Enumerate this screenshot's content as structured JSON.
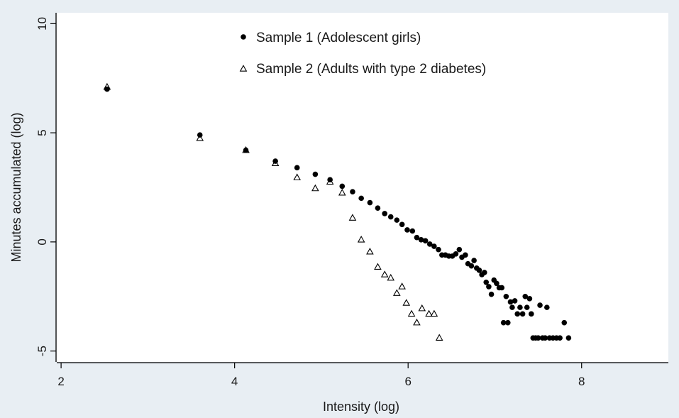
{
  "chart_data": {
    "type": "scatter",
    "title": "",
    "xlabel": "Intensity (log)",
    "ylabel": "Minutes accumulated (log)",
    "xlim": [
      1.95,
      9.0
    ],
    "ylim": [
      -5.5,
      10.5
    ],
    "xticks": [
      2,
      4,
      6,
      8
    ],
    "yticks": [
      -5,
      0,
      5,
      10
    ],
    "grid": false,
    "legend_position": "top",
    "colors": {
      "background": "#e8eef3",
      "plot_area": "#ffffff",
      "marker": "#000000"
    },
    "series": [
      {
        "name": "Sample 1 (Adolescent girls)",
        "marker": "filled-circle",
        "points": [
          [
            2.53,
            7.0
          ],
          [
            3.6,
            4.9
          ],
          [
            4.13,
            4.2
          ],
          [
            4.47,
            3.7
          ],
          [
            4.72,
            3.4
          ],
          [
            4.93,
            3.1
          ],
          [
            5.1,
            2.85
          ],
          [
            5.24,
            2.55
          ],
          [
            5.36,
            2.3
          ],
          [
            5.46,
            2.0
          ],
          [
            5.56,
            1.8
          ],
          [
            5.65,
            1.55
          ],
          [
            5.73,
            1.3
          ],
          [
            5.8,
            1.15
          ],
          [
            5.87,
            1.0
          ],
          [
            5.93,
            0.8
          ],
          [
            5.99,
            0.55
          ],
          [
            6.05,
            0.5
          ],
          [
            6.1,
            0.2
          ],
          [
            6.15,
            0.1
          ],
          [
            6.2,
            0.05
          ],
          [
            6.25,
            -0.1
          ],
          [
            6.3,
            -0.2
          ],
          [
            6.35,
            -0.35
          ],
          [
            6.39,
            -0.6
          ],
          [
            6.43,
            -0.6
          ],
          [
            6.47,
            -0.65
          ],
          [
            6.51,
            -0.65
          ],
          [
            6.55,
            -0.55
          ],
          [
            6.59,
            -0.35
          ],
          [
            6.62,
            -0.7
          ],
          [
            6.66,
            -0.6
          ],
          [
            6.69,
            -1.0
          ],
          [
            6.73,
            -1.1
          ],
          [
            6.76,
            -0.85
          ],
          [
            6.79,
            -1.2
          ],
          [
            6.82,
            -1.3
          ],
          [
            6.85,
            -1.5
          ],
          [
            6.88,
            -1.4
          ],
          [
            6.9,
            -1.85
          ],
          [
            6.93,
            -2.05
          ],
          [
            6.96,
            -2.4
          ],
          [
            6.99,
            -1.75
          ],
          [
            7.02,
            -1.9
          ],
          [
            7.05,
            -2.1
          ],
          [
            7.08,
            -2.1
          ],
          [
            7.1,
            -3.7
          ],
          [
            7.13,
            -2.5
          ],
          [
            7.15,
            -3.7
          ],
          [
            7.18,
            -2.75
          ],
          [
            7.2,
            -3.0
          ],
          [
            7.23,
            -2.7
          ],
          [
            7.26,
            -3.3
          ],
          [
            7.29,
            -3.0
          ],
          [
            7.32,
            -3.3
          ],
          [
            7.35,
            -2.5
          ],
          [
            7.37,
            -3.0
          ],
          [
            7.4,
            -2.6
          ],
          [
            7.42,
            -3.3
          ],
          [
            7.44,
            -4.4
          ],
          [
            7.47,
            -4.4
          ],
          [
            7.5,
            -4.4
          ],
          [
            7.52,
            -2.9
          ],
          [
            7.55,
            -4.4
          ],
          [
            7.58,
            -4.4
          ],
          [
            7.6,
            -3.0
          ],
          [
            7.63,
            -4.4
          ],
          [
            7.67,
            -4.4
          ],
          [
            7.71,
            -4.4
          ],
          [
            7.75,
            -4.4
          ],
          [
            7.8,
            -3.7
          ],
          [
            7.85,
            -4.4
          ]
        ]
      },
      {
        "name": "Sample 2 (Adults with type 2 diabetes)",
        "marker": "hollow-triangle",
        "points": [
          [
            2.53,
            7.1
          ],
          [
            3.6,
            4.75
          ],
          [
            4.13,
            4.2
          ],
          [
            4.47,
            3.6
          ],
          [
            4.72,
            2.95
          ],
          [
            4.93,
            2.45
          ],
          [
            5.1,
            2.75
          ],
          [
            5.24,
            2.25
          ],
          [
            5.36,
            1.1
          ],
          [
            5.46,
            0.1
          ],
          [
            5.56,
            -0.45
          ],
          [
            5.65,
            -1.15
          ],
          [
            5.73,
            -1.5
          ],
          [
            5.8,
            -1.65
          ],
          [
            5.87,
            -2.35
          ],
          [
            5.93,
            -2.05
          ],
          [
            5.98,
            -2.8
          ],
          [
            6.04,
            -3.3
          ],
          [
            6.1,
            -3.7
          ],
          [
            6.16,
            -3.05
          ],
          [
            6.24,
            -3.3
          ],
          [
            6.3,
            -3.3
          ],
          [
            6.36,
            -4.4
          ]
        ]
      }
    ]
  }
}
